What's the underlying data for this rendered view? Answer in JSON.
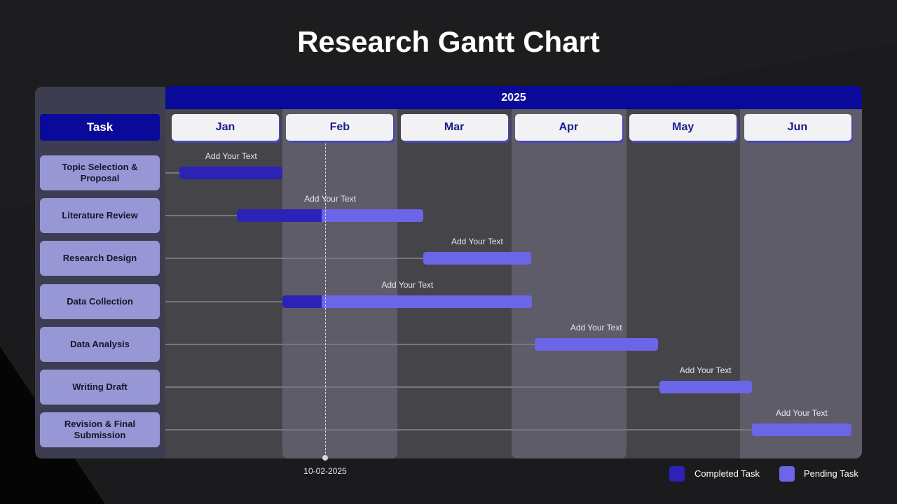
{
  "title": "Research Gantt Chart",
  "colors": {
    "completed": "#2c22b8",
    "pending": "#6b66e8",
    "year_bar": "#0a0a9a",
    "task_label_bg": "#9897d6"
  },
  "chart_data": {
    "type": "gantt",
    "year": "2025",
    "task_header": "Task",
    "months": [
      "Jan",
      "Feb",
      "Mar",
      "Apr",
      "May",
      "Jun"
    ],
    "tasks": [
      {
        "name": "Topic Selection & Proposal",
        "note": "Add Your Text",
        "start": 0.1,
        "end": 1.0,
        "completed_until": 1.0
      },
      {
        "name": "Literature Review",
        "note": "Add Your Text",
        "start": 0.6,
        "end": 2.23,
        "completed_until": 1.34
      },
      {
        "name": "Research Design",
        "note": "Add Your Text",
        "start": 2.23,
        "end": 3.17,
        "completed_until": null
      },
      {
        "name": "Data Collection",
        "note": "Add Your Text",
        "start": 1.0,
        "end": 3.18,
        "completed_until": 1.34
      },
      {
        "name": "Data Analysis",
        "note": "Add Your Text",
        "start": 3.2,
        "end": 4.28,
        "completed_until": null
      },
      {
        "name": "Writing Draft",
        "note": "Add Your Text",
        "start": 4.29,
        "end": 5.1,
        "completed_until": null
      },
      {
        "name": "Revision & Final Submission",
        "note": "Add Your Text",
        "start": 5.1,
        "end": 5.97,
        "completed_until": null
      }
    ],
    "today_marker": {
      "label": "10-02-2025",
      "position": 1.34
    },
    "legend": [
      {
        "label": "Completed Task",
        "color": "#2c22b8"
      },
      {
        "label": "Pending Task",
        "color": "#6b66e8"
      }
    ]
  }
}
